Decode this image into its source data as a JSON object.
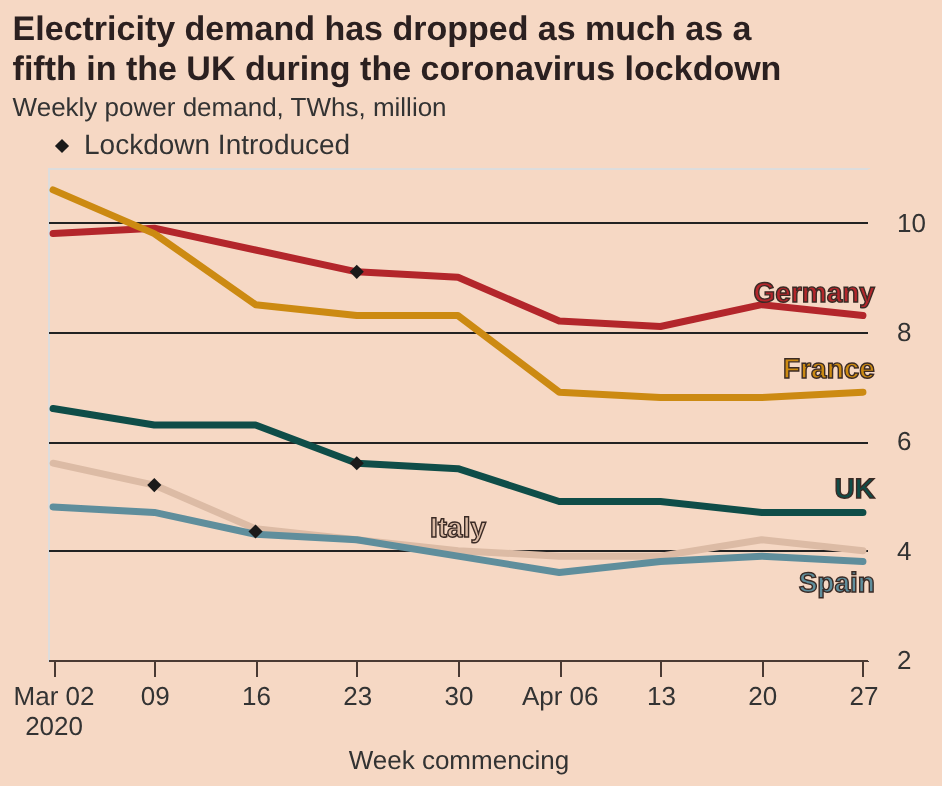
{
  "chart_data": {
    "type": "line",
    "title": "Electricity demand has dropped as much as a fifth in the UK during the coronavirus lockdown",
    "subtitle": "Weekly power demand, TWhs, million",
    "xlabel": "Week commencing",
    "categories": [
      "Mar 02 2020",
      "09",
      "16",
      "23",
      "30",
      "Apr 06",
      "13",
      "20",
      "27"
    ],
    "series": [
      {
        "name": "Germany",
        "color": "#b3262b",
        "values": [
          9.8,
          9.9,
          9.5,
          9.1,
          9.0,
          8.2,
          8.1,
          8.5,
          8.3
        ]
      },
      {
        "name": "France",
        "color": "#cc8a12",
        "values": [
          10.6,
          9.8,
          8.5,
          8.3,
          8.3,
          6.9,
          6.8,
          6.8,
          6.9
        ]
      },
      {
        "name": "UK",
        "color": "#0f4d48",
        "values": [
          6.6,
          6.3,
          6.3,
          5.6,
          5.5,
          4.9,
          4.9,
          4.7,
          4.7
        ]
      },
      {
        "name": "Italy",
        "color": "#dcbba5",
        "values": [
          5.6,
          5.2,
          4.4,
          4.2,
          4.0,
          3.9,
          3.9,
          4.2,
          4.0
        ]
      },
      {
        "name": "Spain",
        "color": "#5f8e9c",
        "values": [
          4.8,
          4.7,
          4.3,
          4.2,
          3.9,
          3.6,
          3.8,
          3.9,
          3.8
        ]
      },
      {
        "name": "Lockdown Introduced",
        "type": "scatter",
        "marker": "diamond",
        "color": "#1a1a1a",
        "x": [
          "09",
          "16",
          "23",
          "23"
        ],
        "values": [
          5.2,
          4.35,
          5.6,
          9.1
        ]
      }
    ],
    "ylim": [
      2,
      11
    ],
    "yticks": [
      2,
      4,
      6,
      8,
      10
    ],
    "grid": "y",
    "legend": "top",
    "line_style": "solid"
  }
}
